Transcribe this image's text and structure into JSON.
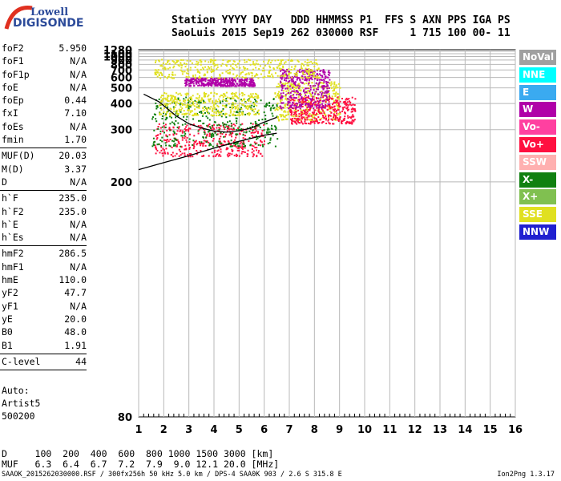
{
  "logo": {
    "line1": "Lowell",
    "line2": "DIGISONDE"
  },
  "header": {
    "line1": "Station YYYY DAY   DDD HHMMSS P1  FFS S AXN PPS IGA PS",
    "line2": "SaoLuis 2015 Sep19 262 030000 RSF     1 715 100 00- 11"
  },
  "params": [
    {
      "label": "foF2",
      "value": "5.950"
    },
    {
      "label": "foF1",
      "value": "N/A"
    },
    {
      "label": "foF1p",
      "value": "N/A"
    },
    {
      "label": "foE",
      "value": "N/A"
    },
    {
      "label": "foEp",
      "value": "0.44"
    },
    {
      "label": "fxI",
      "value": "7.10"
    },
    {
      "label": "foEs",
      "value": "N/A"
    },
    {
      "label": "fmin",
      "value": "1.70",
      "divider": true
    },
    {
      "label": "MUF(D)",
      "value": "20.03"
    },
    {
      "label": "M(D)",
      "value": "3.37"
    },
    {
      "label": "D",
      "value": "N/A",
      "divider": true
    },
    {
      "label": "h`F",
      "value": "235.0"
    },
    {
      "label": "h`F2",
      "value": "235.0"
    },
    {
      "label": "h`E",
      "value": "N/A"
    },
    {
      "label": "h`Es",
      "value": "N/A",
      "divider": true
    },
    {
      "label": "hmF2",
      "value": "286.5"
    },
    {
      "label": "hmF1",
      "value": "N/A"
    },
    {
      "label": "hmE",
      "value": "110.0"
    },
    {
      "label": "yF2",
      "value": "47.7"
    },
    {
      "label": "yF1",
      "value": "N/A"
    },
    {
      "label": "yE",
      "value": "20.0"
    },
    {
      "label": "B0",
      "value": "48.0"
    },
    {
      "label": "B1",
      "value": "1.91",
      "divider": true
    },
    {
      "label": "C-level",
      "value": "44",
      "divider": true
    }
  ],
  "auto": {
    "line1": "Auto:",
    "line2": "Artist5",
    "line3": "500200"
  },
  "legend": [
    {
      "label": "NoVal",
      "color": "#a0a0a0"
    },
    {
      "label": "NNE",
      "color": "#00ffff"
    },
    {
      "label": "E",
      "color": "#3aaaf0"
    },
    {
      "label": "W",
      "color": "#b000a8"
    },
    {
      "label": "Vo-",
      "color": "#ff40a0"
    },
    {
      "label": "Vo+",
      "color": "#ff1040"
    },
    {
      "label": "SSW",
      "color": "#ffb0b0"
    },
    {
      "label": "X-",
      "color": "#108010"
    },
    {
      "label": "X+",
      "color": "#80c050"
    },
    {
      "label": "SSE",
      "color": "#e0e020"
    },
    {
      "label": "NNW",
      "color": "#2020d0"
    }
  ],
  "dmuf": {
    "d_line": "D     100  200  400  600  800 1000 1500 3000 [km]",
    "muf_line": "MUF   6.3  6.4  6.7  7.2  7.9  9.0 12.1 20.0 [MHz]"
  },
  "footer": {
    "left": "SAAOK_2015262030000.RSF / 300fx256h 50 kHz 5.0 km / DPS-4 SAA0K 903 / 2.6 S 315.8 E",
    "right": "Ion2Png 1.3.17"
  },
  "chart_data": {
    "type": "scatter",
    "x_ticks": [
      "1",
      "2",
      "3",
      "4",
      "5",
      "6",
      "7",
      "8",
      "9",
      "10",
      "11",
      "12",
      "13",
      "14",
      "15",
      "16"
    ],
    "y_ticks": [
      "80",
      "200",
      "300",
      "400",
      "500",
      "600",
      "700",
      "800",
      "900",
      "1000",
      "1100",
      "1280"
    ],
    "y_scale": "reciprocal",
    "xlim": [
      1,
      16
    ],
    "ylim": [
      80,
      1280
    ],
    "grid": true,
    "legend_placement": "right",
    "clusters": [
      {
        "label": "Vo+",
        "color": "#ff1040",
        "x": [
          1.6,
          6.0
        ],
        "y": [
          240,
          320
        ]
      },
      {
        "label": "X-",
        "color": "#108010",
        "x": [
          1.5,
          6.5
        ],
        "y": [
          260,
          440
        ]
      },
      {
        "label": "SSE",
        "color": "#e0e020",
        "x": [
          1.8,
          5.8
        ],
        "y": [
          350,
          470
        ]
      },
      {
        "label": "W",
        "color": "#b000a8",
        "x": [
          2.8,
          5.6
        ],
        "y": [
          520,
          600
        ]
      },
      {
        "label": "SSE",
        "color": "#e0e020",
        "x": [
          6.4,
          9.0
        ],
        "y": [
          330,
          560
        ]
      },
      {
        "label": "Vo+",
        "color": "#ff1040",
        "x": [
          7.0,
          9.6
        ],
        "y": [
          320,
          440
        ]
      },
      {
        "label": "W",
        "color": "#b000a8",
        "x": [
          6.6,
          8.6
        ],
        "y": [
          380,
          720
        ]
      },
      {
        "label": "SSE",
        "color": "#e0e020",
        "x": [
          1.6,
          8.2
        ],
        "y": [
          600,
          930
        ]
      }
    ],
    "trace_lower": {
      "x": [
        1.0,
        2.0,
        3.0,
        4.0,
        5.0,
        6.0,
        6.5
      ],
      "y": [
        217,
        228,
        240,
        255,
        270,
        285,
        290
      ]
    },
    "trace_upper": {
      "x": [
        1.2,
        1.8,
        2.5,
        3.0,
        3.5,
        4.0,
        4.5,
        5.0,
        5.5,
        5.9,
        6.5
      ],
      "y": [
        455,
        410,
        345,
        318,
        305,
        296,
        293,
        297,
        305,
        320,
        340
      ]
    }
  }
}
